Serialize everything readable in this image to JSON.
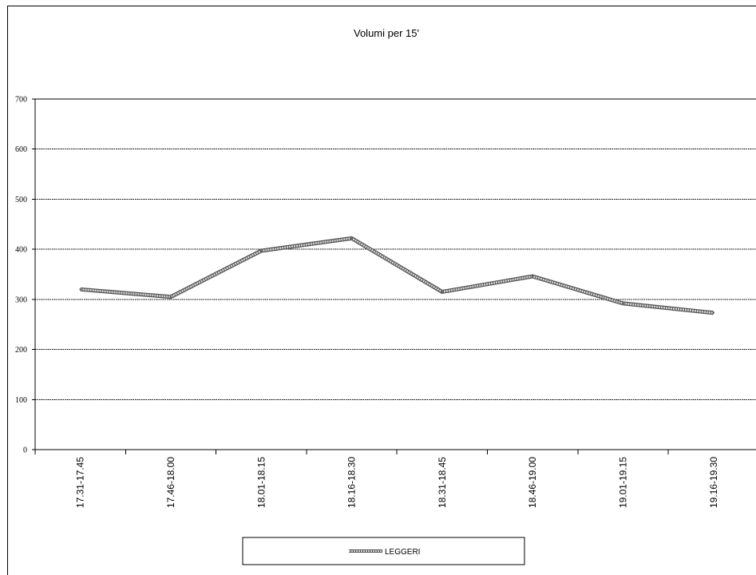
{
  "chart_data": {
    "type": "line",
    "title": "Volumi per 15'",
    "xlabel": "",
    "ylabel": "",
    "categories": [
      "17.31-17.45",
      "17.46-18.00",
      "18.01-18.15",
      "18.16-18.30",
      "18.31-18.45",
      "18.46-19.00",
      "19.01-19.15",
      "19.16-19.30"
    ],
    "series": [
      {
        "name": "LEGGERI",
        "values": [
          320,
          305,
          397,
          422,
          315,
          346,
          292,
          273
        ]
      }
    ],
    "ylim": [
      0,
      700
    ],
    "yticks": [
      0,
      100,
      200,
      300,
      400,
      500,
      600,
      700
    ],
    "grid": true,
    "legend_position": "bottom",
    "colors": {
      "line_outer": "#555555",
      "line_inner": "#d8d8d8",
      "grid": "#000000"
    }
  }
}
